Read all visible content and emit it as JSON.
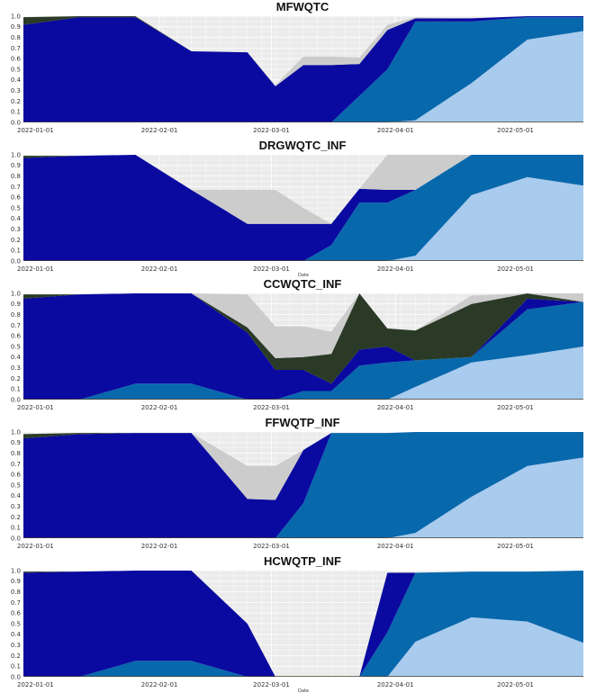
{
  "colors": {
    "grey": "#cccccc",
    "darkgreen": "#2a3a26",
    "navy": "#0a0aa0",
    "midblue": "#0868ac",
    "lightblue": "#a8cbee",
    "panel_bg": "#ebebeb",
    "grid": "#ffffff"
  },
  "chart_data": [
    {
      "type": "area",
      "title": "MFWQTC",
      "xlabel": "",
      "ylabel": "",
      "x": [
        "2021-12-29",
        "2022-01-12",
        "2022-01-26",
        "2022-02-09",
        "2022-02-23",
        "2022-03-02",
        "2022-03-09",
        "2022-03-16",
        "2022-03-23",
        "2022-03-30",
        "2022-04-06",
        "2022-04-20",
        "2022-05-04",
        "2022-05-18"
      ],
      "x_ticks": [
        "2022-01-01",
        "2022-02-01",
        "2022-03-01",
        "2022-04-01",
        "2022-05-01"
      ],
      "ylim": [
        0,
        1
      ],
      "y_ticks": [
        "0.0",
        "0.1",
        "0.2",
        "0.3",
        "0.4",
        "0.5",
        "0.6",
        "0.7",
        "0.8",
        "0.9",
        "1.0"
      ],
      "series": [
        {
          "color_key": "lightblue",
          "values": [
            0,
            0,
            0,
            0,
            0,
            0,
            0,
            0,
            0,
            0,
            0.02,
            0.37,
            0.78,
            0.86
          ]
        },
        {
          "color_key": "midblue",
          "values": [
            0,
            0,
            0,
            0,
            0,
            0,
            0,
            0,
            0.25,
            0.5,
            0.93,
            0.58,
            0.21,
            0.13
          ]
        },
        {
          "color_key": "navy",
          "values": [
            0.92,
            0.99,
            0.99,
            0.67,
            0.66,
            0.34,
            0.54,
            0.54,
            0.3,
            0.37,
            0.03,
            0.03,
            0.01,
            0.01
          ]
        },
        {
          "color_key": "darkgreen",
          "values": [
            0.07,
            0.01,
            0.01,
            0,
            0,
            0,
            0,
            0,
            0,
            0,
            0,
            0,
            0,
            0
          ]
        },
        {
          "color_key": "grey",
          "values": [
            0,
            0,
            0,
            0,
            0,
            0.01,
            0.08,
            0.08,
            0.06,
            0.05,
            0.01,
            0,
            0,
            0
          ]
        }
      ]
    },
    {
      "type": "area",
      "title": "DRGWQTC_INF",
      "xlabel": "Date",
      "ylabel": "",
      "x": [
        "2021-12-29",
        "2022-01-12",
        "2022-01-26",
        "2022-02-09",
        "2022-02-23",
        "2022-03-02",
        "2022-03-09",
        "2022-03-16",
        "2022-03-23",
        "2022-03-30",
        "2022-04-06",
        "2022-04-20",
        "2022-05-04",
        "2022-05-18"
      ],
      "x_ticks": [
        "2022-01-01",
        "2022-02-01",
        "2022-03-01",
        "2022-04-01",
        "2022-05-01"
      ],
      "ylim": [
        0,
        1
      ],
      "y_ticks": [
        "0.0",
        "0.1",
        "0.2",
        "0.3",
        "0.4",
        "0.5",
        "0.6",
        "0.7",
        "0.8",
        "0.9",
        "1.0"
      ],
      "series": [
        {
          "color_key": "lightblue",
          "values": [
            0,
            0,
            0,
            0,
            0,
            0,
            0,
            0,
            0,
            0,
            0.05,
            0.62,
            0.79,
            0.71
          ]
        },
        {
          "color_key": "midblue",
          "values": [
            0,
            0,
            0,
            0,
            0,
            0,
            0,
            0.15,
            0.55,
            0.55,
            0.62,
            0.38,
            0.21,
            0.29
          ]
        },
        {
          "color_key": "navy",
          "values": [
            0.97,
            0.99,
            1.0,
            0.67,
            0.35,
            0.35,
            0.35,
            0.2,
            0.13,
            0.12,
            0,
            0,
            0,
            0
          ]
        },
        {
          "color_key": "darkgreen",
          "values": [
            0.02,
            0,
            0,
            0,
            0,
            0,
            0,
            0,
            0,
            0,
            0,
            0,
            0,
            0
          ]
        },
        {
          "color_key": "grey",
          "values": [
            0,
            0,
            0,
            0,
            0.32,
            0.32,
            0.15,
            0,
            0,
            0.33,
            0.33,
            0,
            0,
            0
          ]
        }
      ]
    },
    {
      "type": "area",
      "title": "CCWQTC_INF",
      "xlabel": "",
      "ylabel": "",
      "x": [
        "2021-12-29",
        "2022-01-12",
        "2022-01-26",
        "2022-02-09",
        "2022-02-23",
        "2022-03-02",
        "2022-03-09",
        "2022-03-16",
        "2022-03-23",
        "2022-03-30",
        "2022-04-06",
        "2022-04-20",
        "2022-05-04",
        "2022-05-18"
      ],
      "x_ticks": [
        "2022-01-01",
        "2022-02-01",
        "2022-03-01",
        "2022-04-01",
        "2022-05-01"
      ],
      "ylim": [
        0,
        1
      ],
      "y_ticks": [
        "0.0",
        "0.1",
        "0.2",
        "0.3",
        "0.4",
        "0.5",
        "0.6",
        "0.7",
        "0.8",
        "0.9",
        "1.0"
      ],
      "series": [
        {
          "color_key": "lightblue",
          "values": [
            0,
            0,
            0,
            0,
            0,
            0,
            0,
            0,
            0,
            0,
            0.12,
            0.35,
            0.42,
            0.5
          ]
        },
        {
          "color_key": "midblue",
          "values": [
            0,
            0,
            0.15,
            0.15,
            0,
            0,
            0.08,
            0.08,
            0.32,
            0.35,
            0.25,
            0.05,
            0.43,
            0.42
          ]
        },
        {
          "color_key": "navy",
          "values": [
            0.95,
            0.99,
            0.85,
            0.85,
            0.63,
            0.28,
            0.2,
            0.07,
            0.15,
            0.15,
            0,
            0,
            0.1,
            0
          ]
        },
        {
          "color_key": "darkgreen",
          "values": [
            0.04,
            0,
            0,
            0,
            0.05,
            0.11,
            0.12,
            0.28,
            0.53,
            0.17,
            0.28,
            0.5,
            0.05,
            0
          ]
        },
        {
          "color_key": "grey",
          "values": [
            0,
            0,
            0,
            0,
            0.31,
            0.3,
            0.29,
            0.21,
            0,
            0,
            0,
            0.08,
            0,
            0.08
          ]
        }
      ]
    },
    {
      "type": "area",
      "title": "FFWQTP_INF",
      "xlabel": "",
      "ylabel": "",
      "x": [
        "2021-12-29",
        "2022-01-12",
        "2022-01-26",
        "2022-02-09",
        "2022-02-23",
        "2022-03-02",
        "2022-03-09",
        "2022-03-16",
        "2022-03-23",
        "2022-03-30",
        "2022-04-06",
        "2022-04-20",
        "2022-05-04",
        "2022-05-18"
      ],
      "x_ticks": [
        "2022-01-01",
        "2022-02-01",
        "2022-03-01",
        "2022-04-01",
        "2022-05-01"
      ],
      "ylim": [
        0,
        1
      ],
      "y_ticks": [
        "0.0",
        "0.1",
        "0.2",
        "0.3",
        "0.4",
        "0.5",
        "0.6",
        "0.7",
        "0.8",
        "0.9",
        "1.0"
      ],
      "series": [
        {
          "color_key": "lightblue",
          "values": [
            0,
            0,
            0,
            0,
            0,
            0,
            0,
            0,
            0,
            0,
            0.05,
            0.39,
            0.68,
            0.76
          ]
        },
        {
          "color_key": "midblue",
          "values": [
            0,
            0,
            0,
            0,
            0,
            0,
            0.33,
            0.99,
            0.99,
            0.99,
            0.95,
            0.61,
            0.32,
            0.24
          ]
        },
        {
          "color_key": "navy",
          "values": [
            0.94,
            0.98,
            0.99,
            0.99,
            0.37,
            0.36,
            0.5,
            0,
            0,
            0,
            0,
            0,
            0,
            0
          ]
        },
        {
          "color_key": "darkgreen",
          "values": [
            0.04,
            0.01,
            0,
            0,
            0,
            0,
            0,
            0,
            0,
            0,
            0,
            0,
            0,
            0
          ]
        },
        {
          "color_key": "grey",
          "values": [
            0,
            0,
            0,
            0,
            0.31,
            0.32,
            0,
            0,
            0,
            0,
            0,
            0,
            0,
            0
          ]
        }
      ]
    },
    {
      "type": "area",
      "title": "HCWQTP_INF",
      "xlabel": "Date",
      "ylabel": "",
      "x": [
        "2021-12-29",
        "2022-01-12",
        "2022-01-26",
        "2022-02-09",
        "2022-02-23",
        "2022-03-02",
        "2022-03-09",
        "2022-03-16",
        "2022-03-23",
        "2022-03-30",
        "2022-04-06",
        "2022-04-20",
        "2022-05-04",
        "2022-05-18"
      ],
      "x_ticks": [
        "2022-01-01",
        "2022-02-01",
        "2022-03-01",
        "2022-04-01",
        "2022-05-01"
      ],
      "ylim": [
        0,
        1
      ],
      "y_ticks": [
        "0.0",
        "0.1",
        "0.2",
        "0.3",
        "0.4",
        "0.5",
        "0.6",
        "0.7",
        "0.8",
        "0.9",
        "1.0"
      ],
      "series": [
        {
          "color_key": "lightblue",
          "values": [
            0,
            0,
            0,
            0,
            0,
            0,
            0,
            0,
            0,
            0,
            0.33,
            0.56,
            0.52,
            0.32
          ]
        },
        {
          "color_key": "midblue",
          "values": [
            0,
            0,
            0.15,
            0.15,
            0,
            0,
            0,
            0,
            0,
            0.42,
            0.65,
            0.43,
            0.47,
            0.68
          ]
        },
        {
          "color_key": "navy",
          "values": [
            0.98,
            0.99,
            0.85,
            0.85,
            0.5,
            0,
            0,
            0,
            0,
            0.56,
            0,
            0,
            0,
            0
          ]
        },
        {
          "color_key": "darkgreen",
          "values": [
            0.01,
            0,
            0,
            0,
            0,
            0,
            0,
            0,
            0,
            0,
            0,
            0,
            0,
            0
          ]
        },
        {
          "color_key": "grey",
          "values": [
            0,
            0,
            0,
            0,
            0,
            0,
            0,
            0,
            0,
            0,
            0,
            0,
            0,
            0
          ]
        }
      ]
    }
  ]
}
